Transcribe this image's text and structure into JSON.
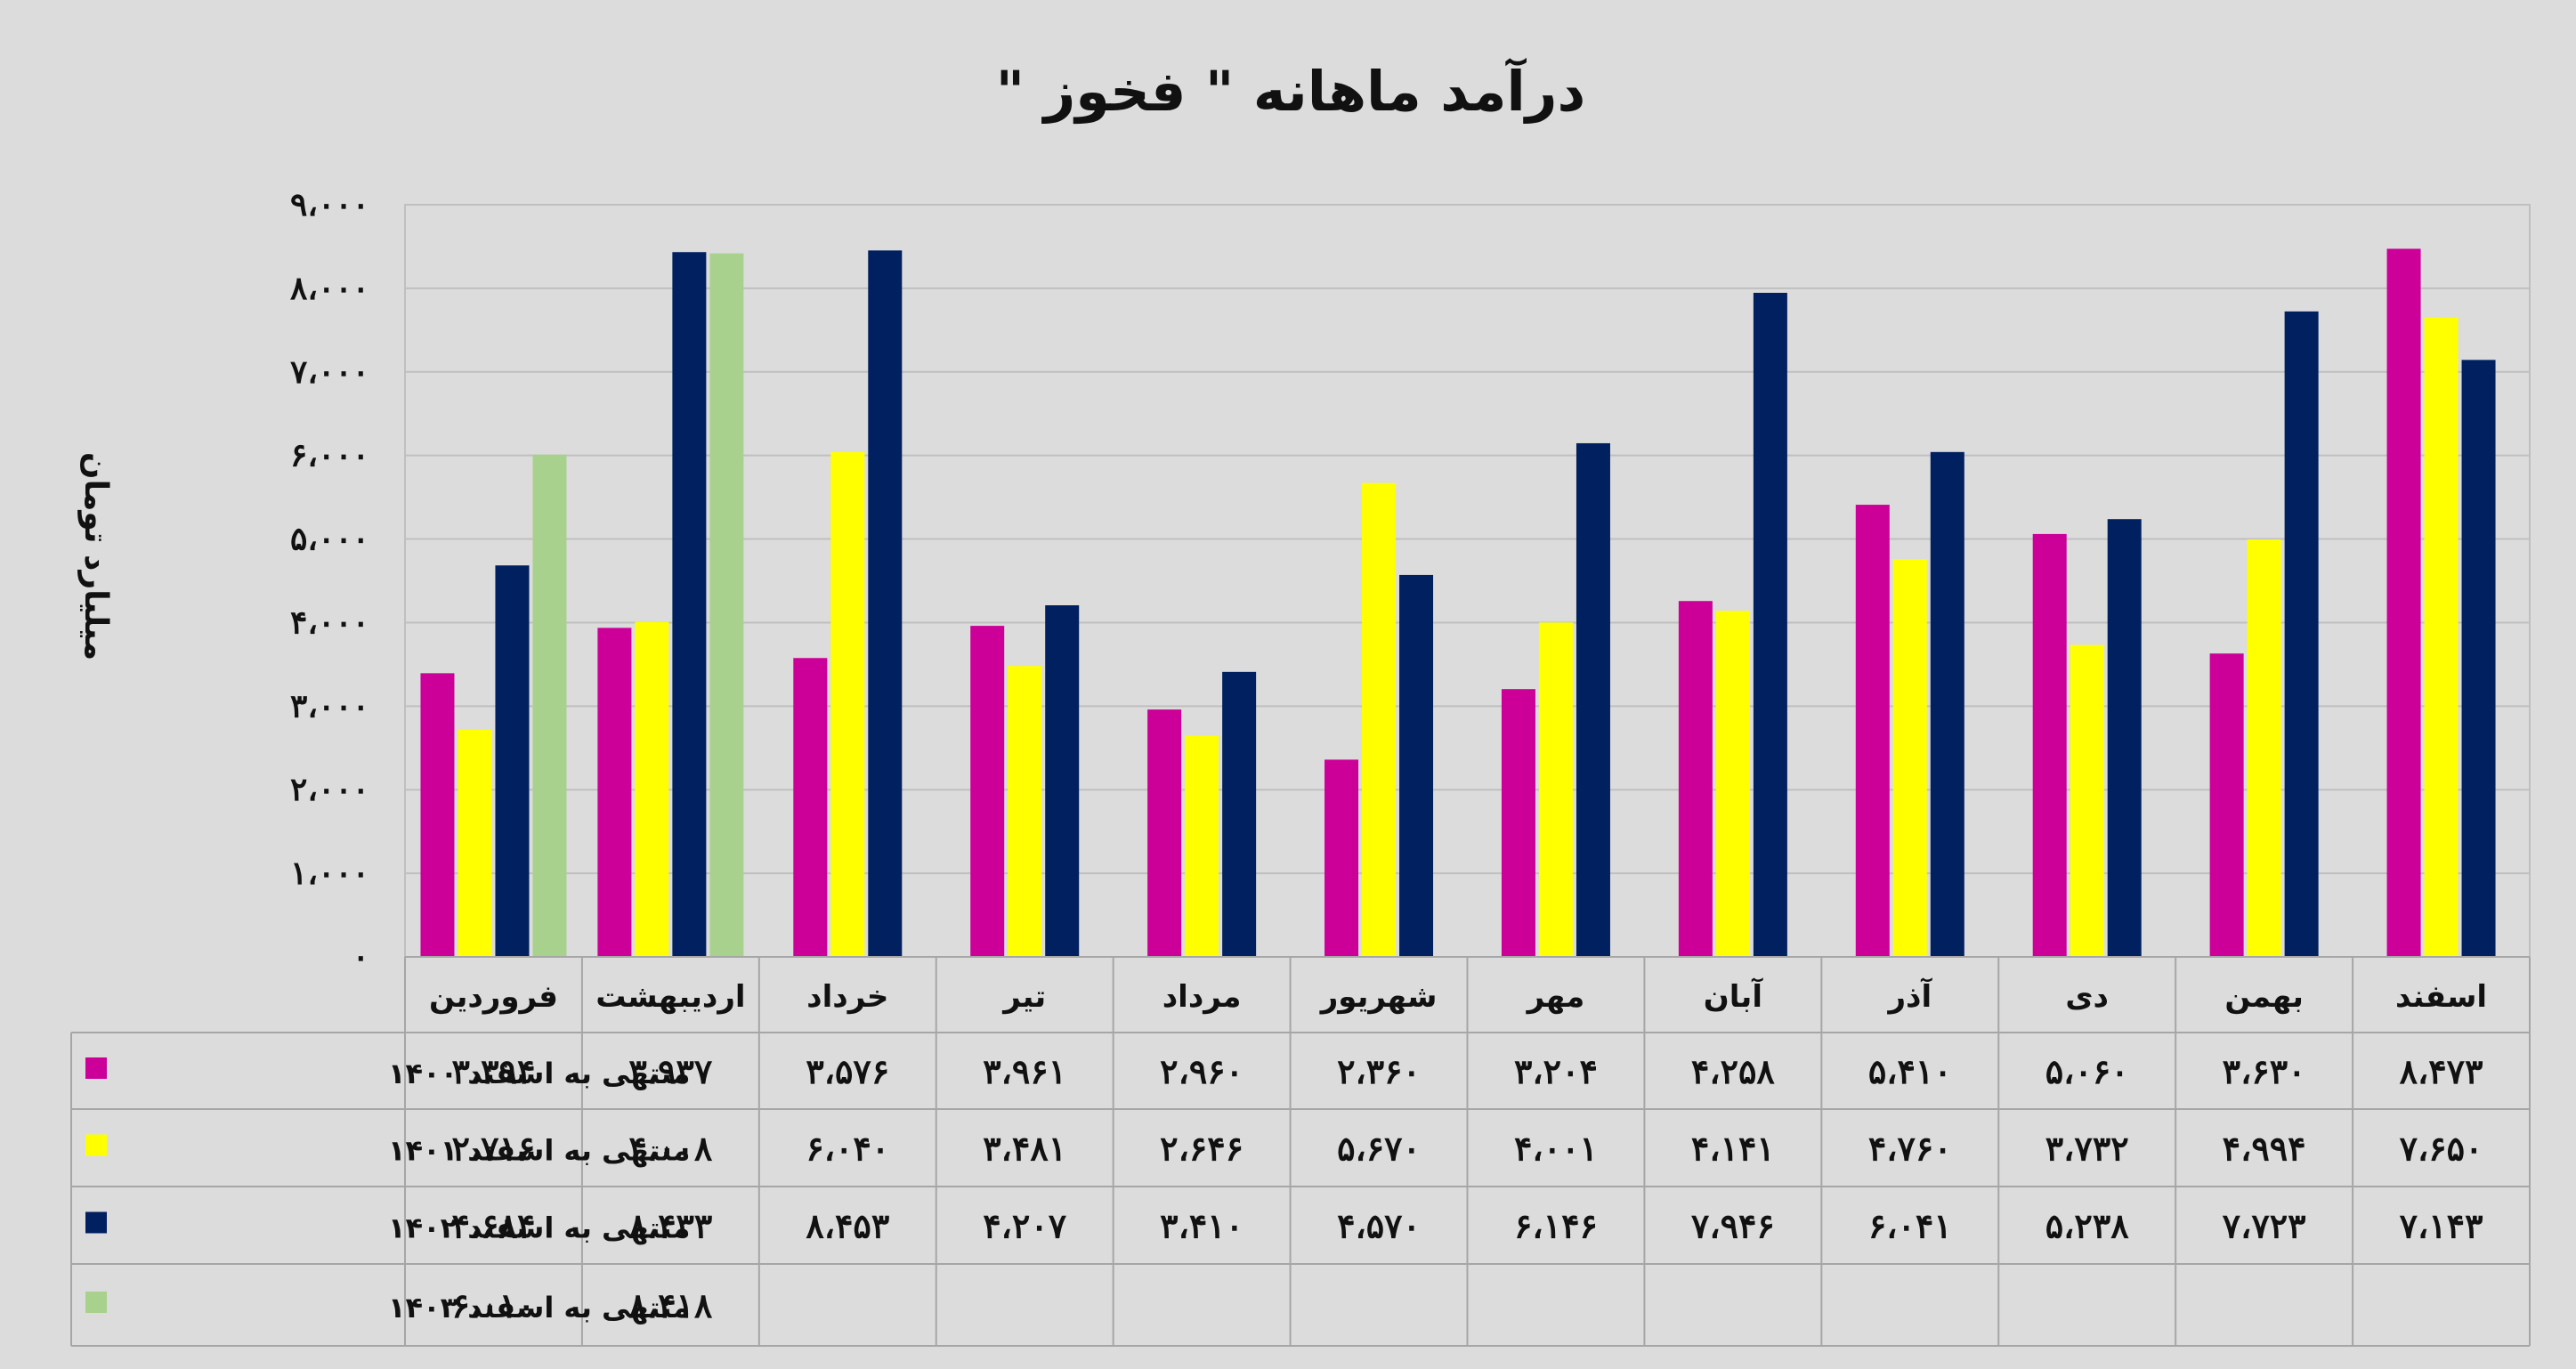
{
  "chart_data": {
    "type": "bar",
    "title": "درآمد ماهانه \" فخوز \"",
    "ylabel": "میلیارد تومان",
    "ylim": [
      0,
      9000
    ],
    "yticks": [
      {
        "value": 0,
        "label": "۰"
      },
      {
        "value": 1000,
        "label": "۱،۰۰۰"
      },
      {
        "value": 2000,
        "label": "۲،۰۰۰"
      },
      {
        "value": 3000,
        "label": "۳،۰۰۰"
      },
      {
        "value": 4000,
        "label": "۴،۰۰۰"
      },
      {
        "value": 5000,
        "label": "۵،۰۰۰"
      },
      {
        "value": 6000,
        "label": "۶،۰۰۰"
      },
      {
        "value": 7000,
        "label": "۷،۰۰۰"
      },
      {
        "value": 8000,
        "label": "۸،۰۰۰"
      },
      {
        "value": 9000,
        "label": "۹،۰۰۰"
      }
    ],
    "grid": true,
    "legend_position": "data-table-left",
    "categories": [
      "فروردین",
      "اردیبهشت",
      "خرداد",
      "تیر",
      "مرداد",
      "شهریور",
      "مهر",
      "آبان",
      "آذر",
      "دی",
      "بهمن",
      "اسفند"
    ],
    "series": [
      {
        "name": "منتهی به اسفند ۱۴۰۰",
        "color": "#cc0099",
        "values": [
          3394,
          3937,
          3576,
          3961,
          2960,
          2360,
          3204,
          4258,
          5410,
          5060,
          3630,
          8473
        ],
        "labels": [
          "۳،۳۹۴",
          "۳،۹۳۷",
          "۳،۵۷۶",
          "۳،۹۶۱",
          "۲،۹۶۰",
          "۲،۳۶۰",
          "۳،۲۰۴",
          "۴،۲۵۸",
          "۵،۴۱۰",
          "۵،۰۶۰",
          "۳،۶۳۰",
          "۸،۴۷۳"
        ]
      },
      {
        "name": "منتهی به اسفند ۱۴۰۱",
        "color": "#ffff00",
        "values": [
          2716,
          4008,
          6040,
          3481,
          2646,
          5670,
          4001,
          4141,
          4760,
          3732,
          4994,
          7650
        ],
        "labels": [
          "۲،۷۱۶",
          "۴،۰۰۸",
          "۶،۰۴۰",
          "۳،۴۸۱",
          "۲،۶۴۶",
          "۵،۶۷۰",
          "۴،۰۰۱",
          "۴،۱۴۱",
          "۴،۷۶۰",
          "۳،۷۳۲",
          "۴،۹۹۴",
          "۷،۶۵۰"
        ]
      },
      {
        "name": "منتهی به اسفند ۱۴۰۲",
        "color": "#002060",
        "values": [
          4684,
          8433,
          8453,
          4207,
          3410,
          4570,
          6146,
          7946,
          6041,
          5238,
          7723,
          7143
        ],
        "labels": [
          "۴،۶۸۴",
          "۸،۴۳۳",
          "۸،۴۵۳",
          "۴،۲۰۷",
          "۳،۴۱۰",
          "۴،۵۷۰",
          "۶،۱۴۶",
          "۷،۹۴۶",
          "۶،۰۴۱",
          "۵،۲۳۸",
          "۷،۷۲۳",
          "۷،۱۴۳"
        ]
      },
      {
        "name": "منتهی به اسفند ۱۴۰۳",
        "color": "#a9d18e",
        "values": [
          6010,
          8418,
          null,
          null,
          null,
          null,
          null,
          null,
          null,
          null,
          null,
          null
        ],
        "labels": [
          "۶،۰۱۰",
          "۸،۴۱۸",
          "",
          "",
          "",
          "",
          "",
          "",
          "",
          "",
          "",
          ""
        ]
      }
    ]
  }
}
